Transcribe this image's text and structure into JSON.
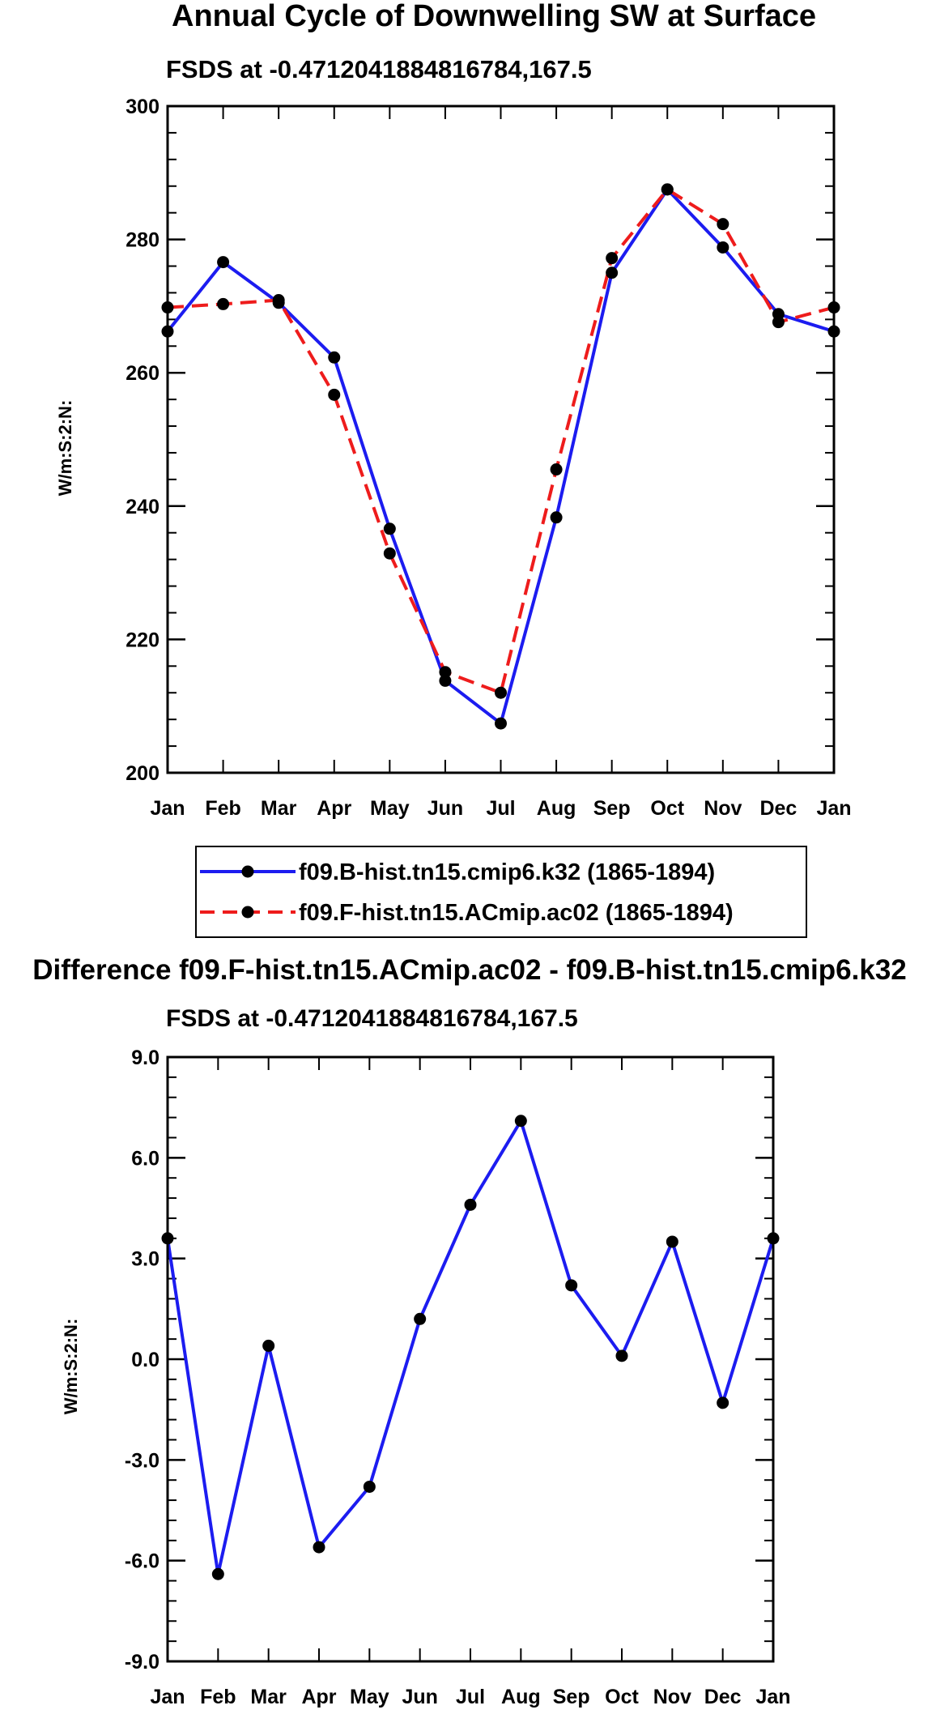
{
  "colors": {
    "series1": "#1c1cf0",
    "series2": "#ee1c1c",
    "marker": "#000000",
    "axis": "#000000"
  },
  "chart_data": [
    {
      "type": "line",
      "title": "Annual Cycle of Downwelling SW at Surface",
      "subtitle": "FSDS at -0.4712041884816784,167.5",
      "xlabel": "",
      "ylabel": "W/m:S:2:N:",
      "categories": [
        "Jan",
        "Feb",
        "Mar",
        "Apr",
        "May",
        "Jun",
        "Jul",
        "Aug",
        "Sep",
        "Oct",
        "Nov",
        "Dec",
        "Jan"
      ],
      "ylim": [
        200,
        300
      ],
      "yticks": [
        "200",
        "220",
        "240",
        "260",
        "280",
        "300"
      ],
      "legend_position": "below",
      "series": [
        {
          "name": "f09.B-hist.tn15.cmip6.k32 (1865-1894)",
          "style": "solid",
          "values": [
            266.2,
            276.6,
            270.5,
            262.3,
            236.6,
            213.8,
            207.4,
            238.3,
            275.0,
            287.5,
            278.8,
            268.8,
            266.2
          ]
        },
        {
          "name": "f09.F-hist.tn15.ACmip.ac02 (1865-1894)",
          "style": "dashed",
          "values": [
            269.8,
            270.3,
            270.9,
            256.7,
            232.9,
            215.1,
            212.0,
            245.5,
            277.2,
            287.5,
            282.3,
            267.6,
            269.8
          ]
        }
      ]
    },
    {
      "type": "line",
      "title": "Difference f09.F-hist.tn15.ACmip.ac02 - f09.B-hist.tn15.cmip6.k32",
      "subtitle": "FSDS at -0.4712041884816784,167.5",
      "xlabel": "",
      "ylabel": "W/m:S:2:N:",
      "categories": [
        "Jan",
        "Feb",
        "Mar",
        "Apr",
        "May",
        "Jun",
        "Jul",
        "Aug",
        "Sep",
        "Oct",
        "Nov",
        "Dec",
        "Jan"
      ],
      "ylim": [
        -9,
        9
      ],
      "yticks": [
        "-9.0",
        "-6.0",
        "-3.0",
        "0.0",
        "3.0",
        "6.0",
        "9.0"
      ],
      "series": [
        {
          "name": "Difference",
          "style": "solid",
          "values": [
            3.6,
            -6.4,
            0.4,
            -5.6,
            -3.8,
            1.2,
            4.6,
            7.1,
            2.2,
            0.1,
            3.5,
            -1.3,
            3.6
          ]
        }
      ]
    }
  ]
}
